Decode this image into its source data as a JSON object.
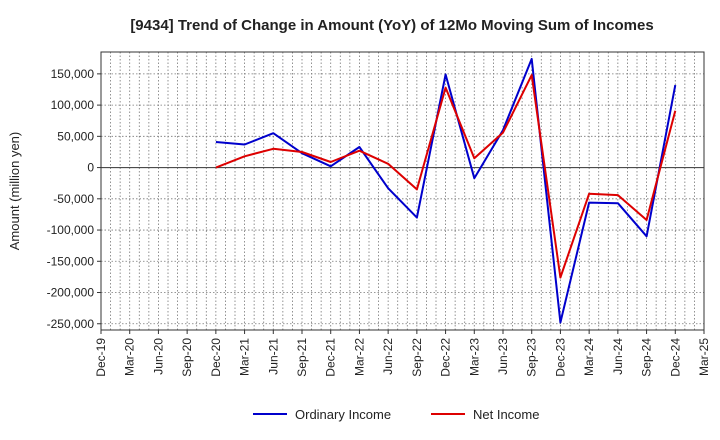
{
  "chart_data": {
    "type": "line",
    "title": "[9434]  Trend of Change in Amount (YoY) of 12Mo Moving Sum of Incomes",
    "ylabel": "Amount (million yen)",
    "xlabel": "",
    "ylim": [
      -260000,
      185000
    ],
    "yticks": [
      150000,
      100000,
      50000,
      0,
      -50000,
      -100000,
      -150000,
      -200000,
      -250000
    ],
    "ytick_labels": [
      "150,000",
      "100,000",
      "50,000",
      "0",
      "-50,000",
      "-100,000",
      "-150,000",
      "-200,000",
      "-250,000"
    ],
    "categories": [
      "Dec-19",
      "Mar-20",
      "Jun-20",
      "Sep-20",
      "Dec-20",
      "Mar-21",
      "Jun-21",
      "Sep-21",
      "Dec-21",
      "Mar-22",
      "Jun-22",
      "Sep-22",
      "Dec-22",
      "Mar-23",
      "Jun-23",
      "Sep-23",
      "Dec-23",
      "Mar-24",
      "Jun-24",
      "Sep-24",
      "Dec-24",
      "Mar-25"
    ],
    "grid": true,
    "legend": "bottom",
    "series": [
      {
        "name": "Ordinary Income",
        "color": "#0000cc",
        "values": [
          null,
          null,
          null,
          null,
          41000,
          37000,
          55000,
          23000,
          2000,
          33000,
          -33000,
          -80000,
          149000,
          -17000,
          60000,
          174000,
          -248000,
          -56000,
          -57000,
          -110000,
          132000,
          null
        ]
      },
      {
        "name": "Net Income",
        "color": "#dd0000",
        "values": [
          null,
          null,
          null,
          null,
          0,
          18000,
          30000,
          25000,
          9000,
          27000,
          6000,
          -35000,
          128000,
          15000,
          56000,
          148000,
          -176000,
          -42000,
          -44000,
          -84000,
          91000,
          null
        ]
      }
    ]
  }
}
